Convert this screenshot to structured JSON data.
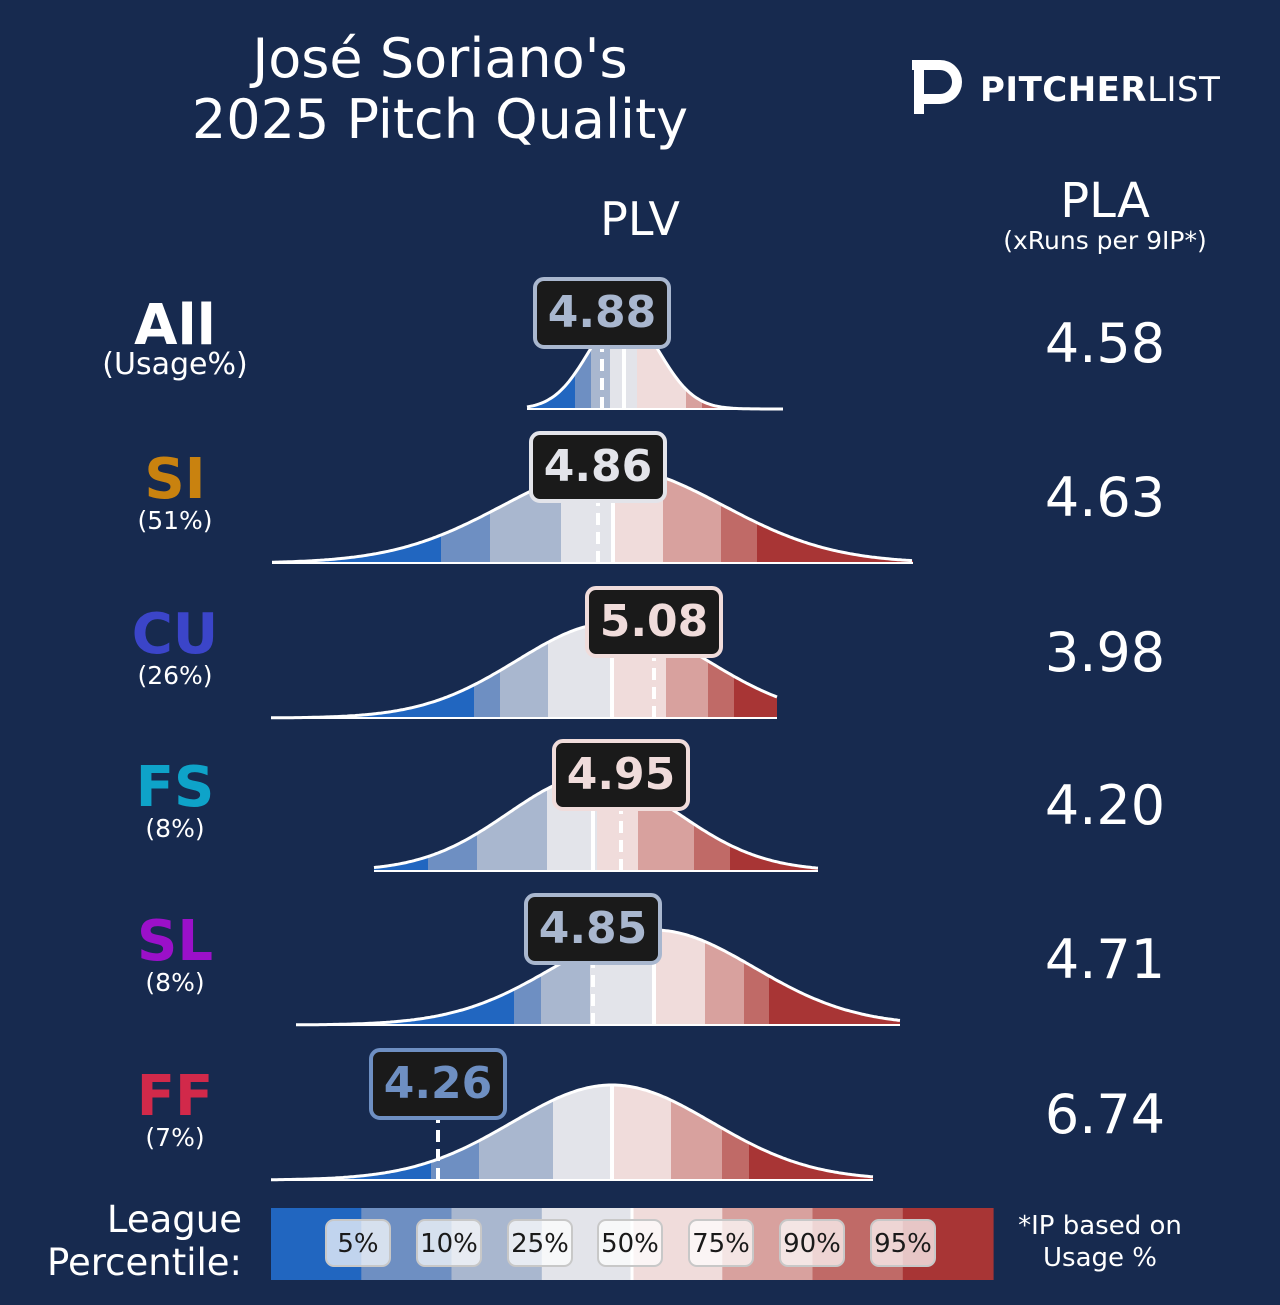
{
  "title_line1": "José Soriano's",
  "title_line2": "2025 Pitch Quality",
  "logo": {
    "bold": "PITCHER",
    "light": "LIST",
    "icon": "pitcherlist-p-logo"
  },
  "headers": {
    "plv": "PLV",
    "pla": "PLA",
    "pla_sub": "(xRuns per 9IP*)"
  },
  "legend": {
    "label_line1": "League",
    "label_line2": "Percentile:",
    "percentiles": [
      "5%",
      "10%",
      "25%",
      "50%",
      "75%",
      "90%",
      "95%"
    ],
    "colors": [
      "#2166c0",
      "#6e8fc2",
      "#a9b7cf",
      "#e3e4ea",
      "#f0dcdb",
      "#d8a19e",
      "#c06a67",
      "#a83535"
    ]
  },
  "footnote_line1": "*IP based on",
  "footnote_line2": "Usage %",
  "chart_data": {
    "type": "distribution",
    "rows": [
      {
        "pitch": "All",
        "usage": "(Usage%)",
        "plv": "4.88",
        "pla": "4.58",
        "color": "#ffffff",
        "badge_color": "#a9b7cf"
      },
      {
        "pitch": "SI",
        "usage": "(51%)",
        "plv": "4.86",
        "pla": "4.63",
        "color": "#c9820f",
        "badge_color": "#e3e4ea"
      },
      {
        "pitch": "CU",
        "usage": "(26%)",
        "plv": "5.08",
        "pla": "3.98",
        "color": "#3b45c9",
        "badge_color": "#f0dcdb"
      },
      {
        "pitch": "FS",
        "usage": "(8%)",
        "plv": "4.95",
        "pla": "4.20",
        "color": "#0ea3c9",
        "badge_color": "#f0dcdb"
      },
      {
        "pitch": "SL",
        "usage": "(8%)",
        "plv": "4.85",
        "pla": "4.71",
        "color": "#9b10c9",
        "badge_color": "#a9b7cf"
      },
      {
        "pitch": "FF",
        "usage": "(7%)",
        "plv": "4.26",
        "pla": "6.74",
        "color": "#d2294a",
        "badge_color": "#6e8fc2"
      }
    ]
  }
}
